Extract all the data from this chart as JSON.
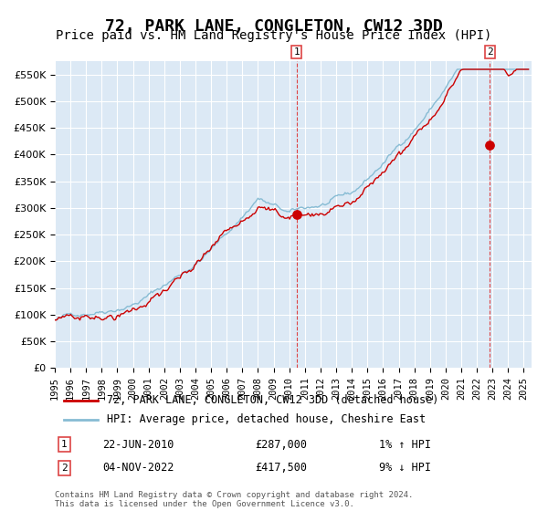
{
  "title": "72, PARK LANE, CONGLETON, CW12 3DD",
  "subtitle": "Price paid vs. HM Land Registry's House Price Index (HPI)",
  "title_fontsize": 13,
  "subtitle_fontsize": 10,
  "bg_color": "#dce9f5",
  "plot_bg_color": "#dce9f5",
  "grid_color": "#ffffff",
  "ylabel_ticks": [
    "£0",
    "£50K",
    "£100K",
    "£150K",
    "£200K",
    "£250K",
    "£300K",
    "£350K",
    "£400K",
    "£450K",
    "£500K",
    "£550K"
  ],
  "ylabel_values": [
    0,
    50000,
    100000,
    150000,
    200000,
    250000,
    300000,
    350000,
    400000,
    450000,
    500000,
    550000
  ],
  "ylim": [
    0,
    575000
  ],
  "xlim_start": 1995.0,
  "xlim_end": 2025.5,
  "hpi_line_color": "#87bcd4",
  "price_line_color": "#cc0000",
  "marker_color": "#cc0000",
  "vline_color": "#dd4444",
  "sale1_x": 2010.47,
  "sale1_y": 287000,
  "sale1_label": "1",
  "sale2_x": 2022.84,
  "sale2_y": 417500,
  "sale2_label": "2",
  "legend_line1": "72, PARK LANE, CONGLETON, CW12 3DD (detached house)",
  "legend_line2": "HPI: Average price, detached house, Cheshire East",
  "note1_label": "1",
  "note1_date": "22-JUN-2010",
  "note1_price": "£287,000",
  "note1_hpi": "1% ↑ HPI",
  "note2_label": "2",
  "note2_date": "04-NOV-2022",
  "note2_price": "£417,500",
  "note2_hpi": "9% ↓ HPI",
  "footnote": "Contains HM Land Registry data © Crown copyright and database right 2024.\nThis data is licensed under the Open Government Licence v3.0.",
  "xtick_years": [
    1995,
    1996,
    1997,
    1998,
    1999,
    2000,
    2001,
    2002,
    2003,
    2004,
    2005,
    2006,
    2007,
    2008,
    2009,
    2010,
    2011,
    2012,
    2013,
    2014,
    2015,
    2016,
    2017,
    2018,
    2019,
    2020,
    2021,
    2022,
    2023,
    2024,
    2025
  ]
}
